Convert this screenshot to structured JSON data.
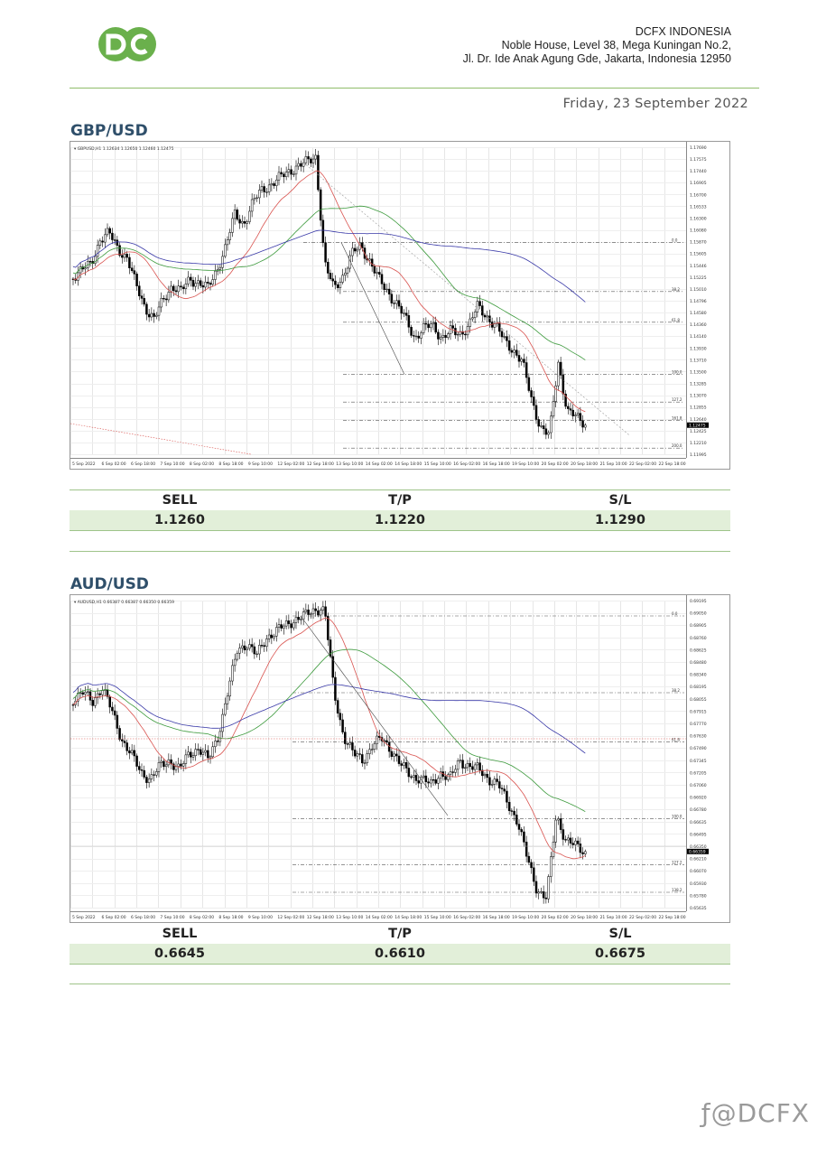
{
  "header": {
    "logo_text": "DC",
    "company_name": "DCFX INDONESIA",
    "address_line1": "Noble House, Level 38, Mega Kuningan No.2,",
    "address_line2": "Jl. Dr. Ide Anak Agung Gde, Jakarta, Indonesia 12950",
    "date": "Friday, 23 September 2022",
    "colors": {
      "logo_green": "#6ab04c",
      "rule_green": "#8fbc6a",
      "title_blue": "#2f4f6a",
      "row_fill": "#e2efd9"
    }
  },
  "pairs": [
    {
      "title": "GBP/USD",
      "chart_caption": "GBPUSD,H1 1.12634 1.12650 1.12460 1.12475",
      "current_price": "1.12475",
      "price_ticks": [
        "1.17690",
        "1.17575",
        "1.17440",
        "1.16905",
        "1.16700",
        "1.16533",
        "1.16300",
        "1.16080",
        "1.15870",
        "1.15605",
        "1.15446",
        "1.15225",
        "1.15010",
        "1.14796",
        "1.14580",
        "1.14360",
        "1.14140",
        "1.13930",
        "1.13710",
        "1.13500",
        "1.13285",
        "1.13070",
        "1.12855",
        "1.12640",
        "1.12425",
        "1.12210",
        "1.11995"
      ],
      "time_ticks": [
        "5 Sep 2022",
        "6 Sep 02:00",
        "6 Sep 18:00",
        "7 Sep 10:00",
        "8 Sep 02:00",
        "8 Sep 18:00",
        "9 Sep 10:00",
        "12 Sep 02:00",
        "12 Sep 18:00",
        "13 Sep 10:00",
        "14 Sep 02:00",
        "14 Sep 18:00",
        "15 Sep 10:00",
        "16 Sep 02:00",
        "16 Sep 18:00",
        "19 Sep 10:00",
        "20 Sep 02:00",
        "20 Sep 18:00",
        "21 Sep 10:00",
        "22 Sep 02:00",
        "22 Sep 18:00"
      ],
      "fib_labels": [
        "0.0",
        "38.2",
        "61.8",
        "100.0",
        "127.2",
        "161.8",
        "200.0"
      ],
      "signal": {
        "h1": "SELL",
        "h2": "T/P",
        "h3": "S/L",
        "v1": "1.1260",
        "v2": "1.1220",
        "v3": "1.1290"
      }
    },
    {
      "title": "AUD/USD",
      "chart_caption": "AUDUSD,H1 0.66387 0.66387 0.66350 0.66359",
      "current_price": "0.66359",
      "price_ticks": [
        "0.69195",
        "0.69050",
        "0.68905",
        "0.68760",
        "0.68625",
        "0.68480",
        "0.68340",
        "0.68195",
        "0.68055",
        "0.67915",
        "0.67770",
        "0.67630",
        "0.67490",
        "0.67345",
        "0.67205",
        "0.67060",
        "0.66920",
        "0.66780",
        "0.66635",
        "0.66495",
        "0.66350",
        "0.66210",
        "0.66070",
        "0.65930",
        "0.65780",
        "0.65635"
      ],
      "time_ticks": [
        "5 Sep 2022",
        "6 Sep 02:00",
        "6 Sep 18:00",
        "7 Sep 10:00",
        "8 Sep 02:00",
        "8 Sep 18:00",
        "9 Sep 10:00",
        "12 Sep 02:00",
        "12 Sep 18:00",
        "13 Sep 10:00",
        "14 Sep 02:00",
        "14 Sep 18:00",
        "15 Sep 10:00",
        "16 Sep 02:00",
        "16 Sep 18:00",
        "19 Sep 10:00",
        "20 Sep 02:00",
        "20 Sep 18:00",
        "21 Sep 10:00",
        "22 Sep 02:00",
        "22 Sep 18:00"
      ],
      "fib_labels": [
        "0.0",
        "38.2",
        "61.8",
        "100.0",
        "127.2",
        "138.2"
      ],
      "signal": {
        "h1": "SELL",
        "h2": "T/P",
        "h3": "S/L",
        "v1": "0.6645",
        "v2": "0.6610",
        "v3": "0.6675"
      }
    }
  ],
  "footer": {
    "watermark": "ƒ@DCFX"
  }
}
